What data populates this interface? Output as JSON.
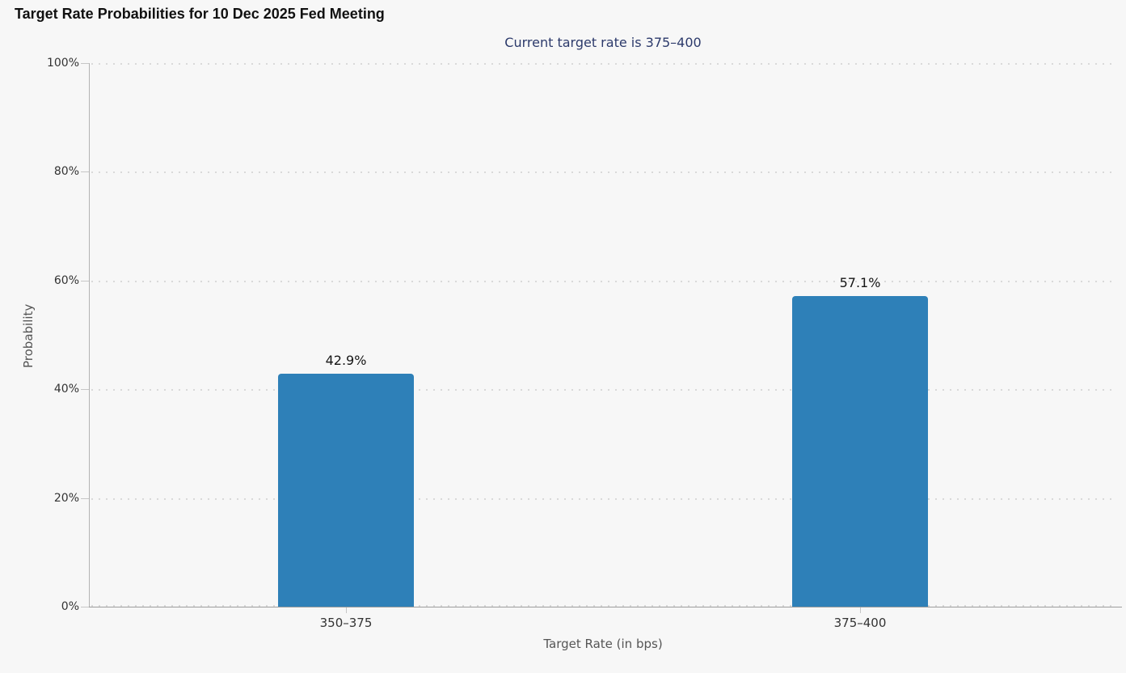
{
  "chart_data": {
    "type": "bar",
    "title": "Target Rate Probabilities for 10 Dec 2025 Fed Meeting",
    "subtitle": "Current target rate is 375–400",
    "categories": [
      "350–375",
      "375–400"
    ],
    "values": [
      42.9,
      57.1
    ],
    "value_labels": [
      "42.9%",
      "57.1%"
    ],
    "xlabel": "Target Rate (in bps)",
    "ylabel": "Probability",
    "ylim": [
      0,
      100
    ],
    "yticks": [
      0,
      20,
      40,
      60,
      80,
      100
    ],
    "ytick_labels": [
      "0%",
      "20%",
      "40%",
      "60%",
      "80%",
      "100%"
    ],
    "legend": "none",
    "grid": "horizontal-dotted",
    "colors": {
      "bar": "#2e80b8",
      "background": "#f7f7f7",
      "title_text": "#111111",
      "subtitle_text": "#2c3a6b",
      "tick_label": "#333333",
      "axis_title": "#555555",
      "axis_line": "#9d9d9d",
      "grid_dot": "#d9d9d9"
    }
  }
}
